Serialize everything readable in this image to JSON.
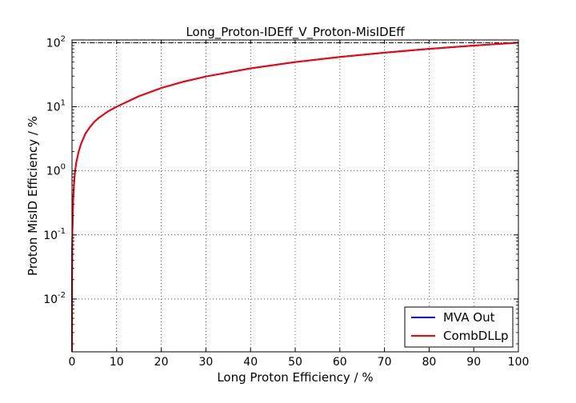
{
  "chart_data": {
    "type": "line",
    "title": "Long_Proton-IDEff_V_Proton-MisIDEff",
    "xlabel": "Long Proton Efficiency / %",
    "ylabel": "Proton MisID Efficiency / %",
    "xlim": [
      0,
      100
    ],
    "ylim": [
      0.0015,
      110
    ],
    "yscale": "log",
    "grid": true,
    "legend_position": "bottom-right",
    "x_ticks": [
      "0",
      "10",
      "20",
      "30",
      "40",
      "50",
      "60",
      "70",
      "80",
      "90",
      "100"
    ],
    "y_ticks": [
      {
        "base": "10",
        "exp": "-2",
        "value": 0.01
      },
      {
        "base": "10",
        "exp": "-1",
        "value": 0.1
      },
      {
        "base": "10",
        "exp": "0",
        "value": 1
      },
      {
        "base": "10",
        "exp": "1",
        "value": 10
      },
      {
        "base": "10",
        "exp": "2",
        "value": 100
      }
    ],
    "reference_line": {
      "y": 100
    },
    "series": [
      {
        "name": "MVA Out",
        "color": "#0000ff",
        "x": [
          0.02,
          0.05,
          0.1,
          0.2,
          0.3,
          0.5,
          0.7,
          1,
          1.5,
          2,
          3,
          4,
          5,
          6,
          8,
          10,
          15,
          20,
          25,
          30,
          40,
          50,
          60,
          70,
          80,
          90,
          100
        ],
        "y": [
          0.02,
          0.06,
          0.12,
          0.25,
          0.4,
          0.7,
          1.0,
          1.4,
          2.0,
          2.6,
          3.8,
          4.8,
          5.8,
          6.7,
          8.4,
          10.0,
          14.6,
          19.6,
          24.6,
          29.6,
          39.7,
          49.8,
          59.8,
          69.8,
          79.9,
          89.9,
          100
        ]
      },
      {
        "name": "CombDLLp",
        "color": "#ff0000",
        "x": [
          0.02,
          0.05,
          0.1,
          0.2,
          0.3,
          0.5,
          0.7,
          1,
          1.5,
          2,
          3,
          4,
          5,
          6,
          8,
          10,
          15,
          20,
          25,
          30,
          40,
          50,
          60,
          70,
          80,
          90,
          100
        ],
        "y": [
          0.02,
          0.06,
          0.12,
          0.25,
          0.4,
          0.7,
          1.0,
          1.4,
          2.0,
          2.6,
          3.8,
          4.8,
          5.8,
          6.7,
          8.4,
          10.0,
          14.6,
          19.6,
          24.6,
          29.6,
          39.7,
          49.8,
          59.8,
          69.8,
          79.9,
          89.9,
          100
        ]
      }
    ]
  }
}
